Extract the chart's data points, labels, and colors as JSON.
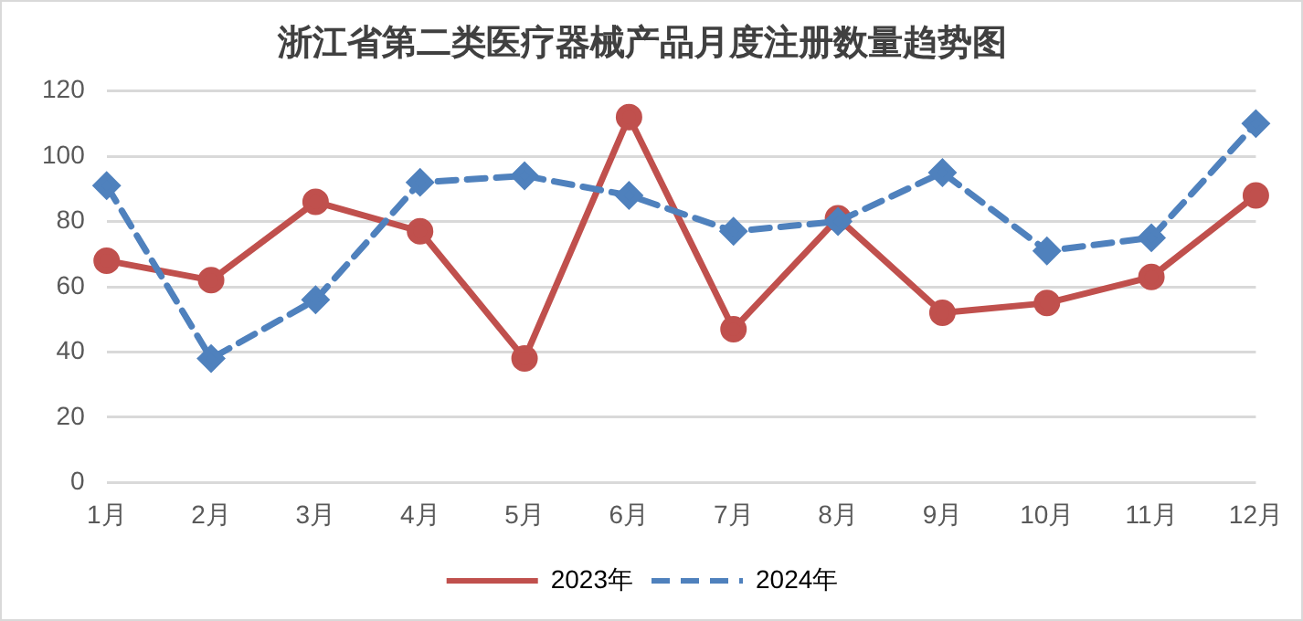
{
  "chart_data": {
    "type": "line",
    "title": "浙江省第二类医疗器械产品月度注册数量趋势图",
    "categories": [
      "1月",
      "2月",
      "3月",
      "4月",
      "5月",
      "6月",
      "7月",
      "8月",
      "9月",
      "10月",
      "11月",
      "12月"
    ],
    "series": [
      {
        "name": "2023年",
        "color": "#c0504d",
        "marker": "circle",
        "line_style": "solid",
        "values": [
          68,
          62,
          86,
          77,
          38,
          112,
          47,
          81,
          52,
          55,
          63,
          88
        ]
      },
      {
        "name": "2024年",
        "color": "#4f81bd",
        "marker": "diamond",
        "line_style": "dashed",
        "values": [
          91,
          38,
          56,
          92,
          94,
          88,
          77,
          80,
          95,
          71,
          75,
          110
        ]
      }
    ],
    "ylim": [
      0,
      120
    ],
    "yticks": [
      0,
      20,
      40,
      60,
      80,
      100,
      120
    ],
    "grid": "y",
    "legend": "bottom"
  }
}
